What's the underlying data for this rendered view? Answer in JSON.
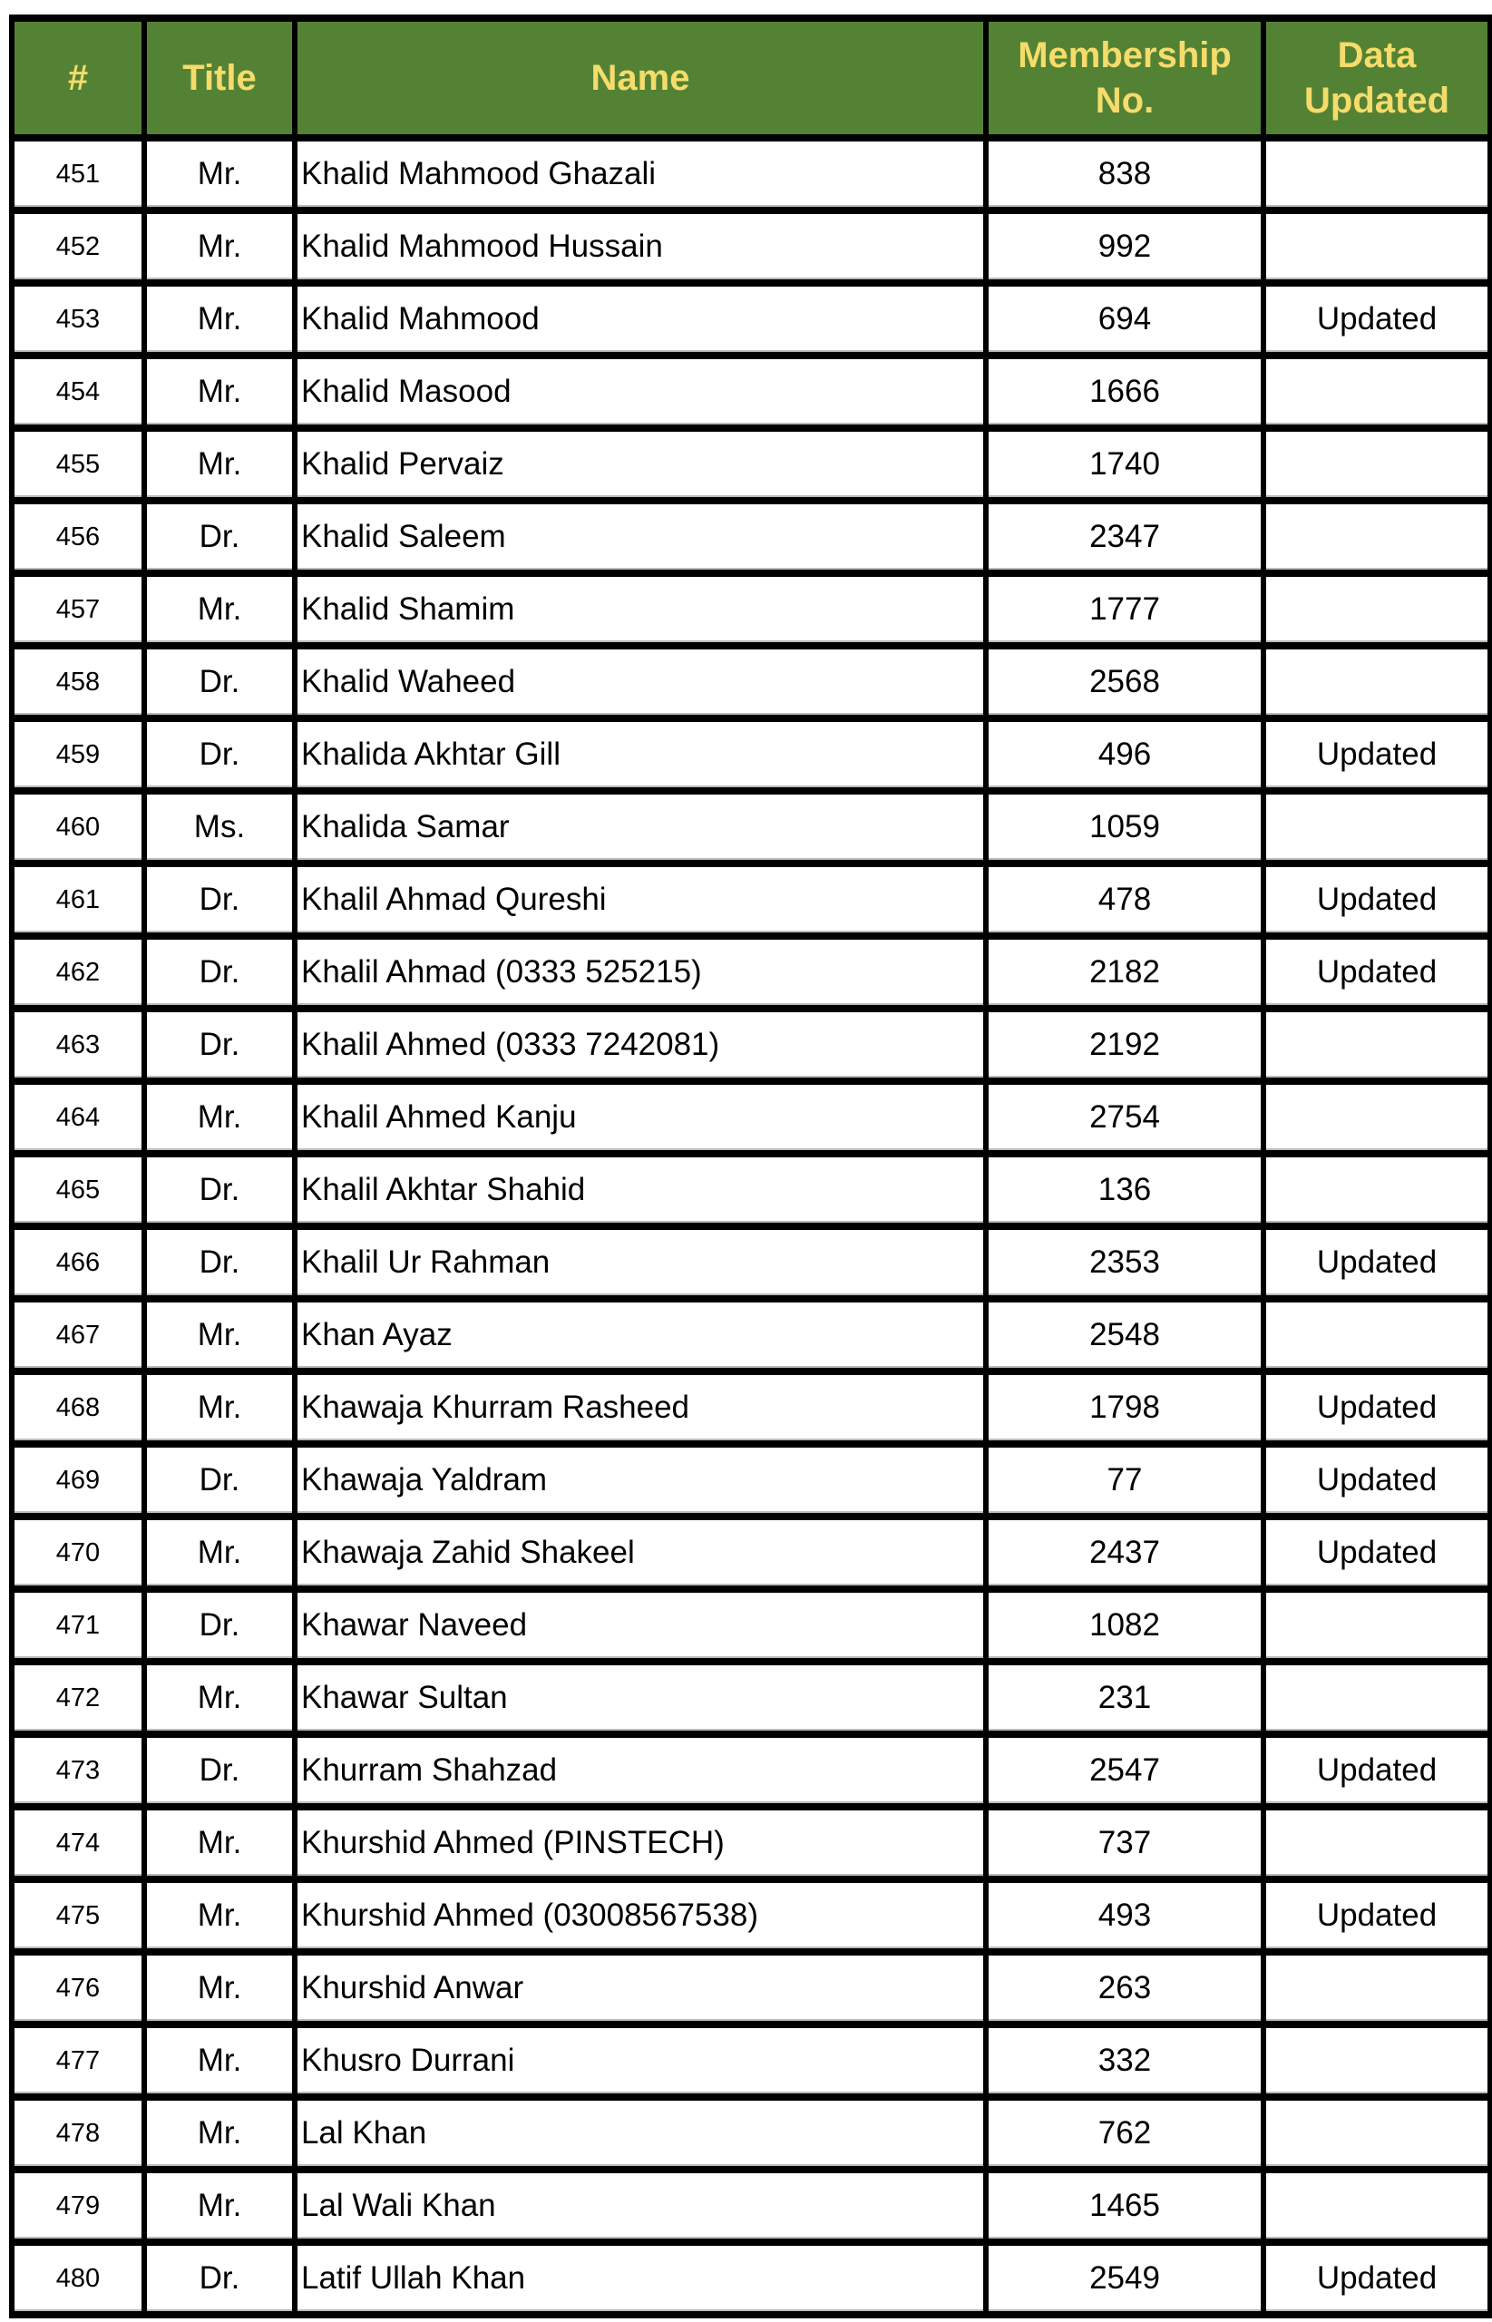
{
  "header": {
    "num": "#",
    "title": "Title",
    "name": "Name",
    "membership_line1": "Membership",
    "membership_line2": "No.",
    "updated_line1": "Data",
    "updated_line2": "Updated"
  },
  "colors": {
    "header_bg": "#548235",
    "header_text": "#f5dc6b"
  },
  "rows": [
    {
      "num": "451",
      "title": "Mr.",
      "name": "Khalid Mahmood Ghazali",
      "membership": "838",
      "updated": ""
    },
    {
      "num": "452",
      "title": "Mr.",
      "name": "Khalid Mahmood Hussain",
      "membership": "992",
      "updated": ""
    },
    {
      "num": "453",
      "title": "Mr.",
      "name": "Khalid Mahmood",
      "membership": "694",
      "updated": "Updated"
    },
    {
      "num": "454",
      "title": "Mr.",
      "name": "Khalid Masood",
      "membership": "1666",
      "updated": ""
    },
    {
      "num": "455",
      "title": "Mr.",
      "name": "Khalid Pervaiz",
      "membership": "1740",
      "updated": ""
    },
    {
      "num": "456",
      "title": "Dr.",
      "name": "Khalid Saleem",
      "membership": "2347",
      "updated": ""
    },
    {
      "num": "457",
      "title": "Mr.",
      "name": "Khalid Shamim",
      "membership": "1777",
      "updated": ""
    },
    {
      "num": "458",
      "title": "Dr.",
      "name": "Khalid Waheed",
      "membership": "2568",
      "updated": ""
    },
    {
      "num": "459",
      "title": "Dr.",
      "name": "Khalida Akhtar Gill",
      "membership": "496",
      "updated": "Updated"
    },
    {
      "num": "460",
      "title": "Ms.",
      "name": "Khalida Samar",
      "membership": "1059",
      "updated": ""
    },
    {
      "num": "461",
      "title": "Dr.",
      "name": "Khalil Ahmad Qureshi",
      "membership": "478",
      "updated": "Updated"
    },
    {
      "num": "462",
      "title": "Dr.",
      "name": "Khalil Ahmad (0333 525215)",
      "membership": "2182",
      "updated": "Updated"
    },
    {
      "num": "463",
      "title": "Dr.",
      "name": "Khalil Ahmed (0333 7242081)",
      "membership": "2192",
      "updated": ""
    },
    {
      "num": "464",
      "title": "Mr.",
      "name": "Khalil Ahmed Kanju",
      "membership": "2754",
      "updated": ""
    },
    {
      "num": "465",
      "title": "Dr.",
      "name": "Khalil Akhtar Shahid",
      "membership": "136",
      "updated": ""
    },
    {
      "num": "466",
      "title": "Dr.",
      "name": "Khalil Ur Rahman",
      "membership": "2353",
      "updated": "Updated"
    },
    {
      "num": "467",
      "title": "Mr.",
      "name": "Khan Ayaz",
      "membership": "2548",
      "updated": ""
    },
    {
      "num": "468",
      "title": "Mr.",
      "name": "Khawaja Khurram Rasheed",
      "membership": "1798",
      "updated": "Updated"
    },
    {
      "num": "469",
      "title": "Dr.",
      "name": "Khawaja Yaldram",
      "membership": "77",
      "updated": "Updated"
    },
    {
      "num": "470",
      "title": "Mr.",
      "name": "Khawaja Zahid Shakeel",
      "membership": "2437",
      "updated": "Updated"
    },
    {
      "num": "471",
      "title": "Dr.",
      "name": "Khawar Naveed",
      "membership": "1082",
      "updated": ""
    },
    {
      "num": "472",
      "title": "Mr.",
      "name": "Khawar Sultan",
      "membership": "231",
      "updated": ""
    },
    {
      "num": "473",
      "title": "Dr.",
      "name": "Khurram Shahzad",
      "membership": "2547",
      "updated": "Updated"
    },
    {
      "num": "474",
      "title": "Mr.",
      "name": "Khurshid Ahmed (PINSTECH)",
      "membership": "737",
      "updated": ""
    },
    {
      "num": "475",
      "title": "Mr.",
      "name": "Khurshid Ahmed (03008567538)",
      "membership": "493",
      "updated": "Updated"
    },
    {
      "num": "476",
      "title": "Mr.",
      "name": "Khurshid Anwar",
      "membership": "263",
      "updated": ""
    },
    {
      "num": "477",
      "title": "Mr.",
      "name": "Khusro Durrani",
      "membership": "332",
      "updated": ""
    },
    {
      "num": "478",
      "title": "Mr.",
      "name": "Lal Khan",
      "membership": "762",
      "updated": ""
    },
    {
      "num": "479",
      "title": "Mr.",
      "name": "Lal Wali Khan",
      "membership": "1465",
      "updated": ""
    },
    {
      "num": "480",
      "title": "Dr.",
      "name": "Latif Ullah Khan",
      "membership": "2549",
      "updated": "Updated"
    }
  ]
}
